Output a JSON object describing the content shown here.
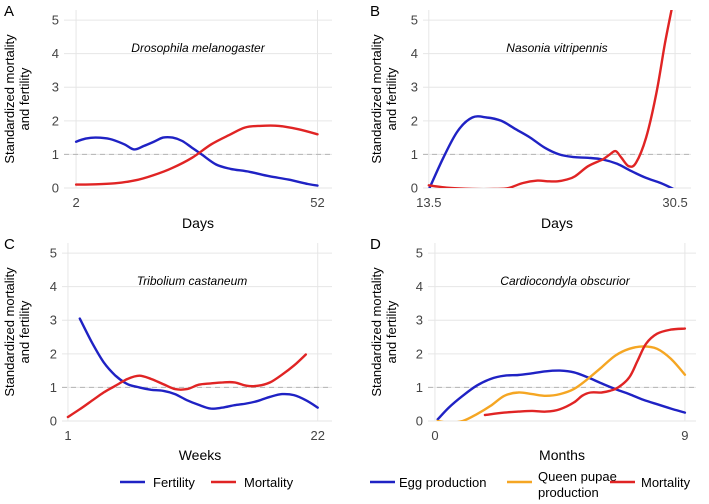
{
  "figure": {
    "y_axis_label_line1": "Standardized mortality",
    "y_axis_label_line2": "and fertility",
    "legend_left": {
      "fertility": "Fertility",
      "mortality": "Mortality"
    },
    "legend_right": {
      "egg": "Egg production",
      "queen_line1": "Queen pupae",
      "queen_line2": "production",
      "mortality": "Mortality"
    },
    "colors": {
      "fertility": "#1f22c4",
      "mortality": "#e02424",
      "queen": "#f5a623",
      "reference": "#bbbbbb",
      "grid": "#e6e6e6",
      "tick_text": "#444444"
    }
  },
  "chart_data": [
    {
      "panel_label": "A",
      "title": "Drosophila melanogaster",
      "type": "line",
      "xlabel": "Days",
      "ylabel": "Standardized mortality and fertility",
      "xlim": [
        -0.5,
        55
      ],
      "ylim": [
        0,
        5.3
      ],
      "x_ticks": [
        2,
        52
      ],
      "x_tick_labels": [
        "2",
        "52"
      ],
      "y_ticks": [
        0,
        1,
        2,
        3,
        4,
        5
      ],
      "y_tick_labels": [
        "0",
        "1",
        "2",
        "3",
        "4",
        "5"
      ],
      "reference_line": 1,
      "series": [
        {
          "name": "Fertility",
          "color": "#1f22c4",
          "x": [
            2,
            4,
            6,
            9,
            12,
            14,
            16,
            18,
            20,
            22,
            24,
            26,
            28,
            31,
            34,
            38,
            42,
            46,
            50,
            52
          ],
          "y": [
            1.38,
            1.47,
            1.5,
            1.46,
            1.3,
            1.15,
            1.25,
            1.37,
            1.5,
            1.5,
            1.4,
            1.2,
            1.0,
            0.7,
            0.57,
            0.48,
            0.35,
            0.25,
            0.12,
            0.07
          ]
        },
        {
          "name": "Mortality",
          "color": "#e02424",
          "x": [
            2,
            6,
            10,
            14,
            18,
            22,
            26,
            30,
            34,
            37,
            40,
            44,
            48,
            52
          ],
          "y": [
            0.1,
            0.11,
            0.14,
            0.22,
            0.38,
            0.6,
            0.9,
            1.3,
            1.6,
            1.8,
            1.85,
            1.85,
            1.75,
            1.6
          ]
        }
      ]
    },
    {
      "panel_label": "B",
      "title": "Nasonia vitripennis",
      "type": "line",
      "xlabel": "Days",
      "ylabel": "Standardized mortality and fertility",
      "xlim": [
        13.1,
        31.6
      ],
      "ylim": [
        0,
        5.3
      ],
      "x_ticks": [
        13.5,
        30.5
      ],
      "x_tick_labels": [
        "13.5",
        "30.5"
      ],
      "y_ticks": [
        0,
        1,
        2,
        3,
        4,
        5
      ],
      "y_tick_labels": [
        "0",
        "1",
        "2",
        "3",
        "4",
        "5"
      ],
      "reference_line": 1,
      "series": [
        {
          "name": "Fertility",
          "color": "#1f22c4",
          "x": [
            13.5,
            14.5,
            15.5,
            16.5,
            17.5,
            18.5,
            19.5,
            20.5,
            21.5,
            22.5,
            23.5,
            24.5,
            25.5,
            26.5,
            27.5,
            28.5,
            29.5,
            30.5
          ],
          "y": [
            -0.05,
            0.9,
            1.7,
            2.1,
            2.1,
            2.0,
            1.75,
            1.5,
            1.2,
            1.0,
            0.92,
            0.9,
            0.85,
            0.72,
            0.5,
            0.3,
            0.15,
            -0.05
          ]
        },
        {
          "name": "Mortality",
          "color": "#e02424",
          "x": [
            13.5,
            15,
            16.5,
            18,
            19,
            20,
            21,
            21.7,
            22.4,
            23,
            23.6,
            24.5,
            25.5,
            26,
            26.4,
            26.8,
            27.3,
            27.8,
            28.5,
            29.2,
            29.8,
            30.3
          ],
          "y": [
            0.08,
            0.0,
            -0.03,
            -0.03,
            0.0,
            0.15,
            0.22,
            0.2,
            0.2,
            0.25,
            0.35,
            0.65,
            0.85,
            1.0,
            1.1,
            0.9,
            0.65,
            0.75,
            1.5,
            2.8,
            4.3,
            5.4
          ]
        }
      ]
    },
    {
      "panel_label": "C",
      "title": "Tribolium castaneum",
      "type": "line",
      "xlabel": "Weeks",
      "ylabel": "Standardized mortality and fertility",
      "xlim": [
        0.5,
        23.2
      ],
      "ylim": [
        0,
        5.3
      ],
      "x_ticks": [
        1,
        22
      ],
      "x_tick_labels": [
        "1",
        "22"
      ],
      "y_ticks": [
        0,
        1,
        2,
        3,
        4,
        5
      ],
      "y_tick_labels": [
        "0",
        "1",
        "2",
        "3",
        "4",
        "5"
      ],
      "reference_line": 1,
      "series": [
        {
          "name": "Fertility",
          "color": "#1f22c4",
          "x": [
            2,
            3,
            4,
            5,
            6,
            7,
            8,
            9,
            10,
            11,
            12,
            13,
            14,
            15,
            16,
            17,
            18,
            19,
            20,
            21,
            22
          ],
          "y": [
            3.05,
            2.35,
            1.75,
            1.35,
            1.1,
            1.0,
            0.93,
            0.9,
            0.8,
            0.62,
            0.48,
            0.37,
            0.4,
            0.47,
            0.52,
            0.6,
            0.72,
            0.8,
            0.77,
            0.62,
            0.4
          ]
        },
        {
          "name": "Mortality",
          "color": "#e02424",
          "x": [
            1,
            2,
            3,
            4,
            5,
            6,
            7,
            8,
            9,
            10,
            11,
            12,
            13,
            14,
            15,
            16,
            17,
            18,
            19,
            20,
            21
          ],
          "y": [
            0.12,
            0.35,
            0.6,
            0.85,
            1.05,
            1.25,
            1.35,
            1.25,
            1.1,
            0.95,
            0.95,
            1.08,
            1.12,
            1.15,
            1.15,
            1.05,
            1.05,
            1.15,
            1.38,
            1.65,
            1.98
          ]
        }
      ]
    },
    {
      "panel_label": "D",
      "title": "Cardiocondyla obscurior",
      "type": "line",
      "xlabel": "Months",
      "ylabel": "Standardized mortality and fertility",
      "xlim": [
        -0.25,
        9.4
      ],
      "ylim": [
        0,
        5.3
      ],
      "x_ticks": [
        0,
        9
      ],
      "x_tick_labels": [
        "0",
        "9"
      ],
      "y_ticks": [
        0,
        1,
        2,
        3,
        4,
        5
      ],
      "y_tick_labels": [
        "0",
        "1",
        "2",
        "3",
        "4",
        "5"
      ],
      "reference_line": 1,
      "series": [
        {
          "name": "Egg production",
          "color": "#1f22c4",
          "x": [
            0.1,
            0.5,
            1,
            1.5,
            2,
            2.5,
            3,
            3.5,
            4,
            4.5,
            5,
            5.5,
            6,
            6.5,
            7,
            7.5,
            8,
            8.5,
            9
          ],
          "y": [
            0.05,
            0.4,
            0.75,
            1.05,
            1.25,
            1.35,
            1.37,
            1.42,
            1.48,
            1.5,
            1.45,
            1.3,
            1.12,
            0.95,
            0.8,
            0.63,
            0.5,
            0.37,
            0.25
          ]
        },
        {
          "name": "Queen pupae production",
          "color": "#f5a623",
          "x": [
            0.1,
            0.5,
            1,
            1.5,
            2,
            2.5,
            3,
            3.5,
            4,
            4.5,
            5,
            5.5,
            6,
            6.5,
            7,
            7.5,
            8,
            8.5,
            9
          ],
          "y": [
            0.0,
            -0.05,
            0.0,
            0.2,
            0.45,
            0.75,
            0.85,
            0.8,
            0.75,
            0.8,
            0.95,
            1.25,
            1.6,
            1.95,
            2.15,
            2.22,
            2.15,
            1.85,
            1.38
          ]
        },
        {
          "name": "Mortality",
          "color": "#e02424",
          "x": [
            1.8,
            2.5,
            3,
            3.5,
            4,
            4.5,
            5,
            5.3,
            5.6,
            6,
            6.3,
            6.6,
            7,
            7.3,
            7.6,
            8,
            8.5,
            9
          ],
          "y": [
            0.18,
            0.25,
            0.28,
            0.3,
            0.28,
            0.35,
            0.55,
            0.75,
            0.85,
            0.85,
            0.9,
            1.0,
            1.3,
            1.8,
            2.3,
            2.6,
            2.72,
            2.75
          ]
        }
      ]
    }
  ]
}
